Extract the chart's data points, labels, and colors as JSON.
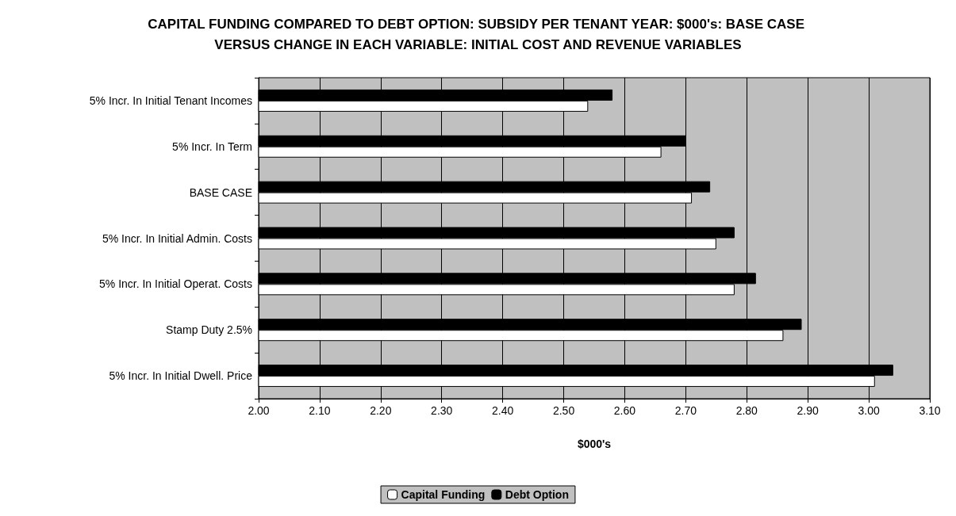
{
  "chart_data": {
    "type": "bar",
    "orientation": "horizontal",
    "title": "CAPITAL FUNDING COMPARED TO DEBT OPTION: SUBSIDY PER TENANT YEAR: $000's: BASE CASE VERSUS CHANGE IN EACH VARIABLE: INITIAL COST AND REVENUE VARIABLES",
    "xlabel": "$000's",
    "categories": [
      "5% Incr. In Initial Tenant Incomes",
      "5% Incr. In Term",
      "BASE CASE",
      "5% Incr. In Initial Admin. Costs",
      "5% Incr. In Initial Operat. Costs",
      "Stamp Duty 2.5%",
      "5% Incr. In Initial Dwell. Price"
    ],
    "series": [
      {
        "name": "Capital Funding",
        "color": "#ffffff",
        "values": [
          2.54,
          2.66,
          2.71,
          2.75,
          2.78,
          2.86,
          3.01
        ]
      },
      {
        "name": "Debt Option",
        "color": "#000000",
        "values": [
          2.58,
          2.7,
          2.74,
          2.78,
          2.815,
          2.89,
          3.04
        ]
      }
    ],
    "xlim": [
      2.0,
      3.1
    ],
    "xticks": [
      {
        "value": 2.0,
        "label": "2.00"
      },
      {
        "value": 2.1,
        "label": "2.10"
      },
      {
        "value": 2.2,
        "label": "2.20"
      },
      {
        "value": 2.3,
        "label": "2.30"
      },
      {
        "value": 2.4,
        "label": "2.40"
      },
      {
        "value": 2.5,
        "label": "2.50"
      },
      {
        "value": 2.6,
        "label": "2.60"
      },
      {
        "value": 2.7,
        "label": "2.70"
      },
      {
        "value": 2.8,
        "label": "2.80"
      },
      {
        "value": 2.9,
        "label": "2.90"
      },
      {
        "value": 3.0,
        "label": "3.00"
      },
      {
        "value": 3.1,
        "label": "3.10"
      }
    ],
    "grid": "x",
    "legend": "bottom"
  }
}
